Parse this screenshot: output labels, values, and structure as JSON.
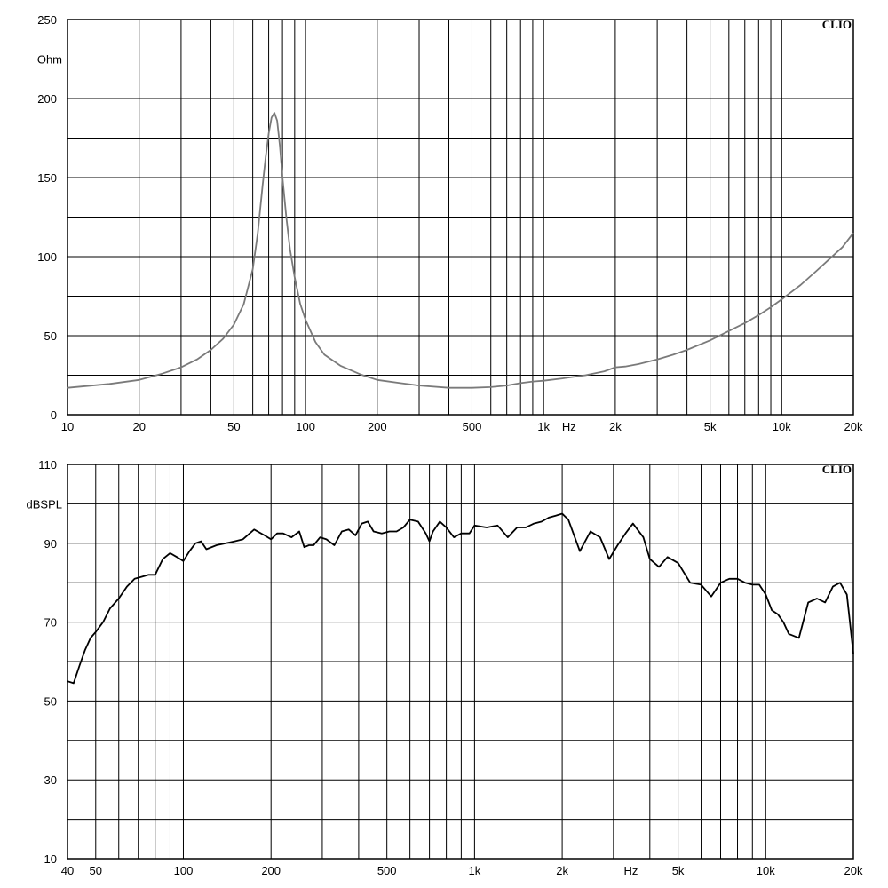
{
  "chart_data": [
    {
      "type": "line",
      "brand": "CLIO",
      "ylabel": "Ohm",
      "xlabel": "Hz",
      "x_scale": "log",
      "xlim": [
        10,
        20000
      ],
      "ylim": [
        0,
        250
      ],
      "y_ticks": [
        0,
        50,
        100,
        150,
        200,
        250
      ],
      "y_tick_labels": [
        "0",
        "50",
        "100",
        "150",
        "200",
        "250"
      ],
      "x_ticks": [
        10,
        20,
        50,
        100,
        200,
        500,
        1000,
        2000,
        5000,
        10000,
        20000
      ],
      "x_tick_labels": [
        "10",
        "20",
        "50",
        "100",
        "200",
        "500",
        "1k",
        "2k",
        "5k",
        "10k",
        "20k"
      ],
      "grid": true,
      "series": [
        {
          "color": "#7a7a7a",
          "x": [
            10,
            15,
            20,
            25,
            30,
            35,
            40,
            45,
            50,
            55,
            60,
            63,
            66,
            68,
            70,
            72,
            74,
            76,
            78,
            80,
            83,
            86,
            90,
            95,
            100,
            110,
            120,
            140,
            170,
            200,
            250,
            300,
            400,
            500,
            600,
            700,
            800,
            900,
            1000,
            1200,
            1500,
            1800,
            2000,
            2200,
            2500,
            3000,
            3500,
            4000,
            5000,
            6000,
            7000,
            8000,
            9000,
            10000,
            12000,
            14000,
            16000,
            18000,
            20000
          ],
          "y": [
            17,
            19.5,
            22,
            26,
            30,
            35,
            41,
            48,
            57,
            70,
            92,
            115,
            145,
            163,
            178,
            188,
            191,
            186,
            170,
            150,
            125,
            105,
            87,
            70,
            60,
            46,
            38,
            31,
            25.5,
            22,
            20,
            18.5,
            17,
            17,
            17.5,
            18.5,
            20,
            21,
            21.5,
            23,
            25,
            27.5,
            30,
            30.5,
            32,
            35,
            38,
            41,
            47,
            53,
            58,
            63,
            68,
            73,
            82,
            91,
            99,
            106,
            115
          ]
        }
      ]
    },
    {
      "type": "line",
      "brand": "CLIO",
      "ylabel": "dBSPL",
      "xlabel": "Hz",
      "x_scale": "log",
      "xlim": [
        40,
        20000
      ],
      "ylim": [
        10,
        110
      ],
      "y_ticks": [
        10,
        30,
        50,
        70,
        90,
        110
      ],
      "y_tick_labels": [
        "10",
        "30",
        "50",
        "70",
        "90",
        "110"
      ],
      "x_ticks": [
        40,
        50,
        100,
        200,
        500,
        1000,
        2000,
        5000,
        10000,
        20000
      ],
      "x_tick_labels": [
        "40",
        "50",
        "100",
        "200",
        "500",
        "1k",
        "2k",
        "5k",
        "10k",
        "20k"
      ],
      "grid": true,
      "series": [
        {
          "color": "#000000",
          "x": [
            40,
            42,
            44,
            46,
            48,
            50,
            53,
            56,
            60,
            64,
            68,
            72,
            76,
            80,
            85,
            90,
            95,
            100,
            105,
            110,
            115,
            120,
            130,
            140,
            150,
            160,
            175,
            190,
            200,
            210,
            220,
            235,
            250,
            260,
            270,
            280,
            295,
            310,
            330,
            350,
            370,
            390,
            410,
            430,
            450,
            480,
            510,
            540,
            570,
            600,
            640,
            680,
            700,
            720,
            760,
            800,
            850,
            900,
            960,
            1000,
            1100,
            1200,
            1300,
            1400,
            1500,
            1600,
            1700,
            1800,
            1900,
            2000,
            2100,
            2300,
            2500,
            2700,
            2900,
            3100,
            3300,
            3500,
            3800,
            4000,
            4300,
            4600,
            5000,
            5500,
            6000,
            6500,
            7000,
            7500,
            8000,
            8500,
            9000,
            9500,
            10000,
            10500,
            11000,
            11500,
            12000,
            13000,
            14000,
            15000,
            16000,
            17000,
            18000,
            19000,
            20000
          ],
          "y": [
            55,
            54.5,
            59,
            63,
            66,
            67.5,
            70,
            73.5,
            76,
            79,
            81,
            81.5,
            82,
            82,
            86,
            87.5,
            86.5,
            85.5,
            88,
            90,
            90.5,
            88.5,
            89.5,
            90,
            90.5,
            91,
            93.5,
            92,
            91,
            92.5,
            92.5,
            91.5,
            93,
            89,
            89.5,
            89.5,
            91.5,
            91,
            89.5,
            93,
            93.5,
            92,
            95,
            95.5,
            93,
            92.5,
            93,
            93,
            94,
            96,
            95.5,
            92.5,
            90.5,
            93,
            95.5,
            94,
            91.5,
            92.5,
            92.5,
            94.5,
            94,
            94.5,
            91.5,
            94,
            94,
            95,
            95.5,
            96.5,
            97,
            97.5,
            96,
            88,
            93,
            91.5,
            86,
            89.5,
            92.5,
            95,
            91.5,
            86,
            84,
            86.5,
            85,
            80,
            79.5,
            76.5,
            80,
            81,
            81,
            80,
            79.5,
            79.5,
            77,
            73,
            72,
            70,
            67,
            66,
            75,
            76,
            75,
            79,
            80,
            77,
            62
          ]
        }
      ]
    }
  ]
}
